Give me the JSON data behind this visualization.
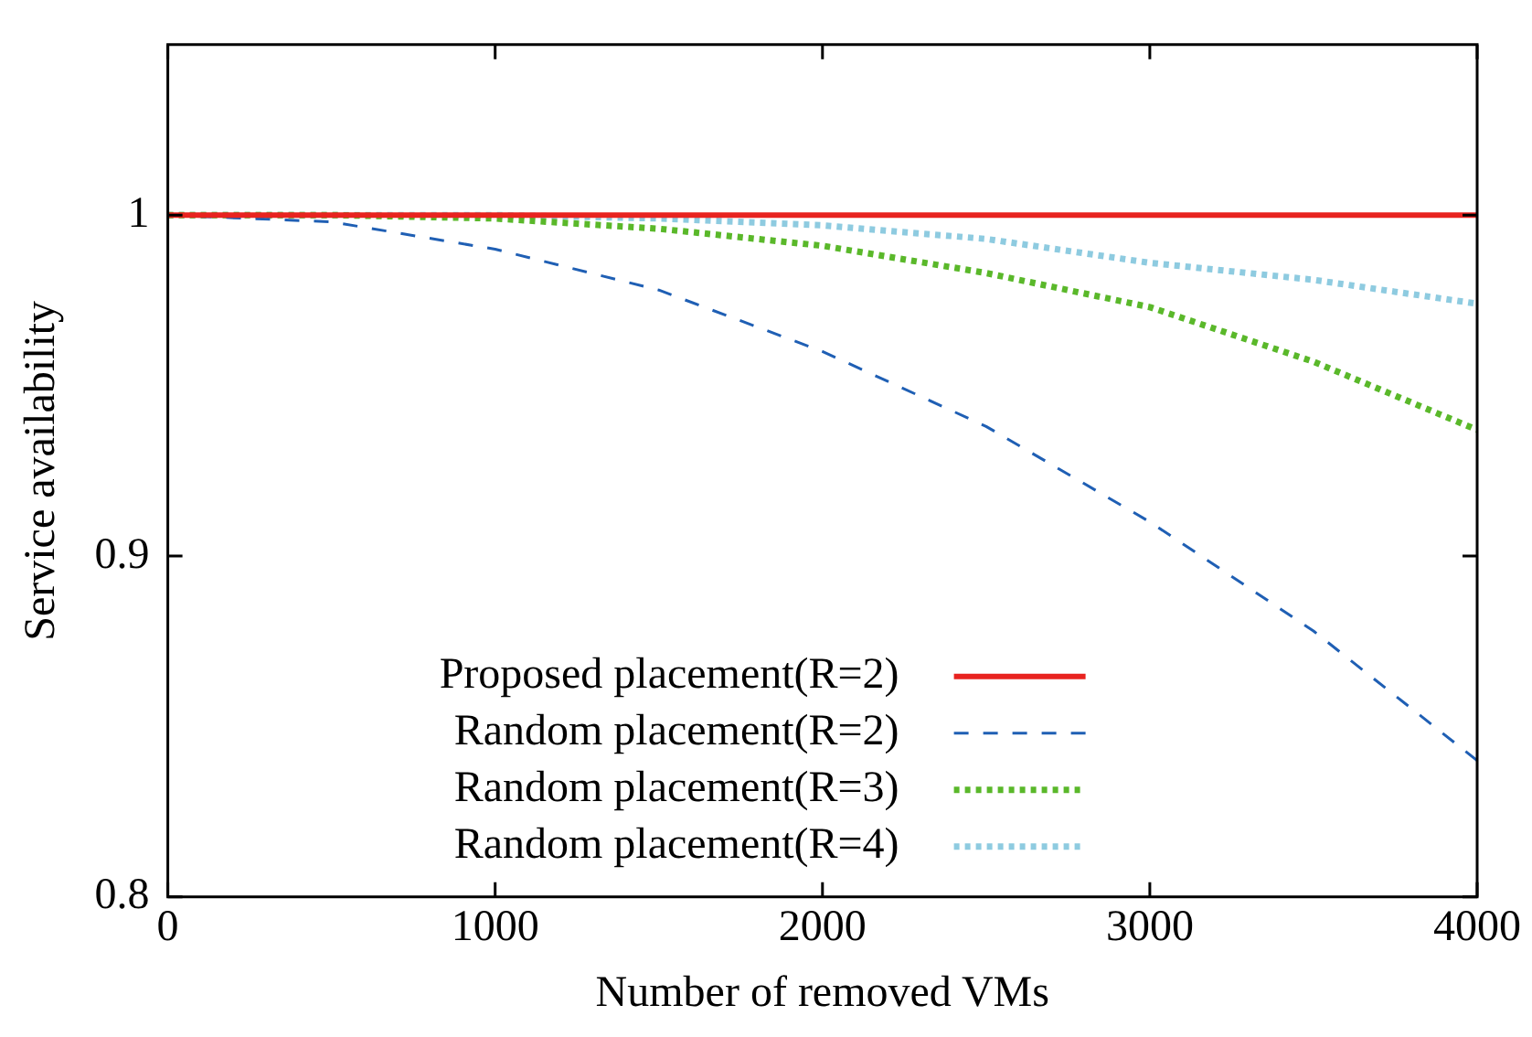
{
  "chart_data": {
    "type": "line",
    "xlabel": "Number of removed VMs",
    "ylabel": "Service availability",
    "xlim": [
      0,
      4000
    ],
    "xticks": [
      0,
      1000,
      2000,
      3000,
      4000
    ],
    "ylim": [
      0.8,
      1.05
    ],
    "yticks": [
      0.8,
      0.9,
      1
    ],
    "grid": false,
    "legend": "bottom",
    "marker": "none",
    "series": [
      {
        "name": "Proposed placement(R=2)",
        "color": "#e8231f",
        "line_style": "solid",
        "x": [
          0,
          1000,
          2000,
          3000,
          4000
        ],
        "values": [
          1,
          1,
          1,
          1,
          1
        ]
      },
      {
        "name": "Random placement(R=2)",
        "color": "#1f5fb4",
        "line_style": "dashed",
        "x": [
          0,
          500,
          1000,
          1500,
          2000,
          2500,
          3000,
          3500,
          4000
        ],
        "values": [
          1,
          0.998,
          0.99,
          0.978,
          0.96,
          0.938,
          0.91,
          0.878,
          0.84
        ]
      },
      {
        "name": "Random placement(R=3)",
        "color": "#5ab82a",
        "line_style": "dotted",
        "x": [
          0,
          500,
          1000,
          1500,
          2000,
          2500,
          3000,
          3500,
          4000
        ],
        "values": [
          1,
          1,
          0.999,
          0.996,
          0.991,
          0.983,
          0.973,
          0.957,
          0.937
        ]
      },
      {
        "name": "Random placement(R=4)",
        "color": "#8ecbe0",
        "line_style": "dotted",
        "x": [
          0,
          1000,
          1500,
          2000,
          2500,
          3000,
          3500,
          4000
        ],
        "values": [
          1,
          1,
          0.999,
          0.997,
          0.993,
          0.986,
          0.981,
          0.974
        ]
      }
    ]
  }
}
